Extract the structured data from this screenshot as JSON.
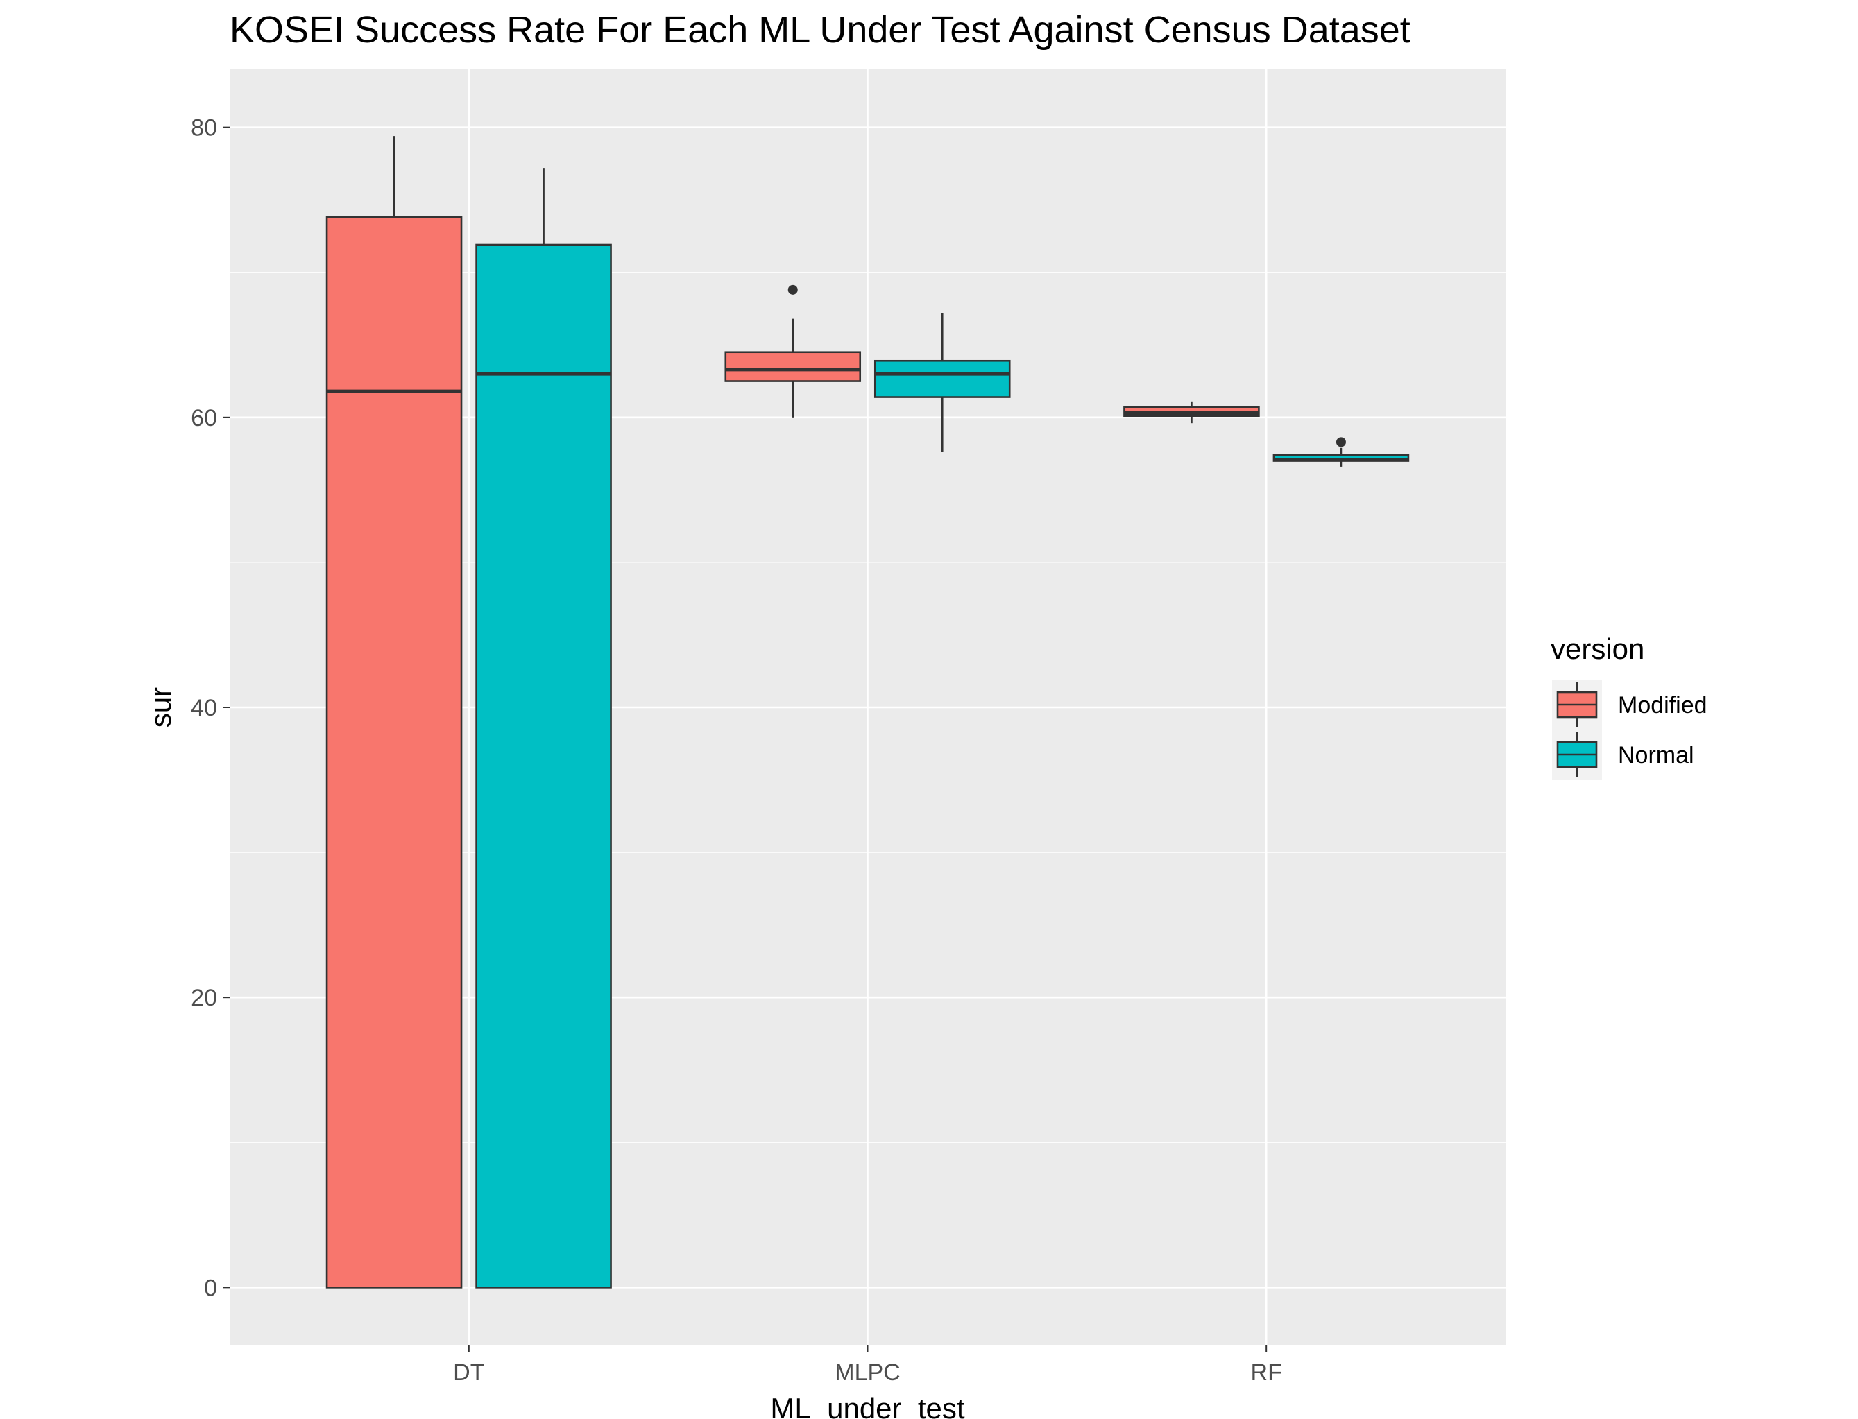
{
  "chart_data": {
    "type": "boxplot",
    "title": "KOSEI Success Rate For Each ML Under Test Against Census Dataset",
    "xlabel": "ML_under_test",
    "ylabel": "sur",
    "categories": [
      "DT",
      "MLPC",
      "RF"
    ],
    "ylim": [
      -4,
      84
    ],
    "yticks": [
      0,
      20,
      40,
      60,
      80
    ],
    "ytick_labels": [
      "0",
      "20",
      "40",
      "60",
      "80"
    ],
    "grid": true,
    "legend": {
      "title": "version",
      "position": "right",
      "entries": [
        "Modified",
        "Normal"
      ]
    },
    "series": [
      {
        "name": "Modified",
        "color": "#F8766D",
        "boxes": [
          {
            "category": "DT",
            "min": 0,
            "q1": 0,
            "median": 61.8,
            "q3": 73.8,
            "max": 79.4,
            "outliers": []
          },
          {
            "category": "MLPC",
            "min": 60.0,
            "q1": 62.5,
            "median": 63.3,
            "q3": 64.5,
            "max": 66.8,
            "outliers": [
              68.8
            ]
          },
          {
            "category": "RF",
            "min": 59.6,
            "q1": 60.1,
            "median": 60.3,
            "q3": 60.7,
            "max": 61.1,
            "outliers": []
          }
        ]
      },
      {
        "name": "Normal",
        "color": "#00BFC4",
        "boxes": [
          {
            "category": "DT",
            "min": 0,
            "q1": 0,
            "median": 63.0,
            "q3": 71.9,
            "max": 77.2,
            "outliers": []
          },
          {
            "category": "MLPC",
            "min": 57.6,
            "q1": 61.4,
            "median": 63.0,
            "q3": 63.9,
            "max": 67.2,
            "outliers": []
          },
          {
            "category": "RF",
            "min": 56.6,
            "q1": 57.0,
            "median": 57.1,
            "q3": 57.4,
            "max": 57.9,
            "outliers": [
              58.3
            ]
          }
        ]
      }
    ],
    "colors": {
      "panel_background": "#EBEBEB",
      "grid_line": "#FFFFFF",
      "box_outline": "#333333"
    }
  }
}
